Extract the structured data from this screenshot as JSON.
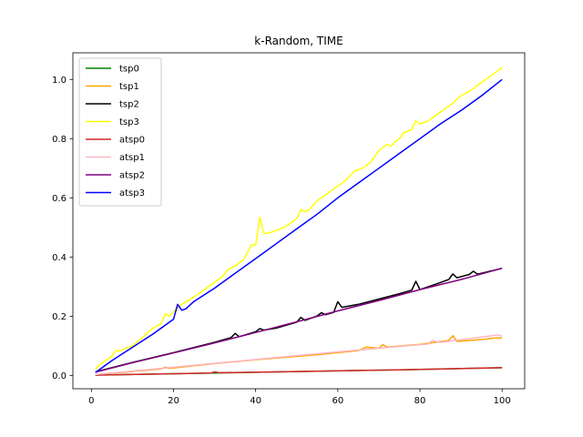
{
  "chart_data": {
    "type": "line",
    "title": "k-Random, TIME",
    "xlabel": "",
    "ylabel": "",
    "xlim": [
      -4.5,
      105.5
    ],
    "ylim": [
      -0.045,
      1.09
    ],
    "xticks": [
      0,
      20,
      40,
      60,
      80,
      100
    ],
    "yticks": [
      0.0,
      0.2,
      0.4,
      0.6,
      0.8,
      1.0
    ],
    "xtick_labels": [
      "0",
      "20",
      "40",
      "60",
      "80",
      "100"
    ],
    "ytick_labels": [
      "0.0",
      "0.2",
      "0.4",
      "0.6",
      "0.8",
      "1.0"
    ],
    "grid": false,
    "legend_position": "top-left",
    "series": [
      {
        "name": "tsp0",
        "color": "#008000",
        "x": [
          1,
          25,
          50,
          75,
          100
        ],
        "y": [
          0.001,
          0.007,
          0.013,
          0.019,
          0.026
        ]
      },
      {
        "name": "tsp1",
        "color": "#ffa500",
        "x": [
          1,
          10,
          11,
          12,
          17,
          18,
          19,
          30,
          40,
          55,
          65,
          66,
          67,
          70,
          71,
          72,
          80,
          87,
          88,
          89,
          95,
          98,
          100
        ],
        "y": [
          0.003,
          0.013,
          0.017,
          0.016,
          0.022,
          0.028,
          0.024,
          0.04,
          0.053,
          0.07,
          0.084,
          0.09,
          0.096,
          0.092,
          0.104,
          0.096,
          0.105,
          0.118,
          0.134,
          0.115,
          0.121,
          0.126,
          0.127
        ]
      },
      {
        "name": "tsp2",
        "color": "#000000",
        "x": [
          1,
          10,
          20,
          30,
          34,
          35,
          36,
          40,
          41,
          42,
          45,
          50,
          51,
          52,
          55,
          56,
          57,
          59,
          60,
          61,
          65,
          70,
          75,
          78,
          79,
          80,
          85,
          87,
          88,
          89,
          92,
          93,
          94,
          100
        ],
        "y": [
          0.012,
          0.044,
          0.077,
          0.112,
          0.128,
          0.142,
          0.131,
          0.148,
          0.158,
          0.153,
          0.16,
          0.18,
          0.196,
          0.186,
          0.201,
          0.212,
          0.205,
          0.213,
          0.249,
          0.23,
          0.24,
          0.258,
          0.276,
          0.288,
          0.318,
          0.29,
          0.314,
          0.324,
          0.343,
          0.33,
          0.341,
          0.352,
          0.342,
          0.362
        ]
      },
      {
        "name": "tsp3",
        "color": "#ffff00",
        "x": [
          1,
          2,
          3,
          5,
          6,
          7,
          8,
          10,
          15,
          17,
          18,
          19,
          20,
          22,
          25,
          30,
          32,
          33,
          35,
          37,
          38,
          39,
          40,
          41,
          42,
          43,
          45,
          47,
          50,
          51,
          52,
          53,
          55,
          58,
          60,
          62,
          64,
          66,
          68,
          70,
          72,
          73,
          74,
          75,
          76,
          78,
          79,
          80,
          82,
          85,
          88,
          90,
          92,
          95,
          98,
          100
        ],
        "y": [
          0.02,
          0.036,
          0.045,
          0.065,
          0.085,
          0.082,
          0.09,
          0.1,
          0.16,
          0.175,
          0.208,
          0.2,
          0.216,
          0.24,
          0.265,
          0.315,
          0.335,
          0.355,
          0.37,
          0.39,
          0.415,
          0.44,
          0.44,
          0.535,
          0.48,
          0.48,
          0.49,
          0.5,
          0.53,
          0.56,
          0.553,
          0.56,
          0.59,
          0.62,
          0.64,
          0.66,
          0.69,
          0.7,
          0.72,
          0.76,
          0.78,
          0.775,
          0.79,
          0.8,
          0.82,
          0.83,
          0.86,
          0.85,
          0.86,
          0.89,
          0.92,
          0.945,
          0.96,
          0.99,
          1.02,
          1.04
        ]
      },
      {
        "name": "atsp0",
        "color": "#d62728",
        "x": [
          1,
          25,
          29,
          30,
          31,
          50,
          75,
          100
        ],
        "y": [
          0.001,
          0.007,
          0.008,
          0.012,
          0.009,
          0.013,
          0.019,
          0.026
        ]
      },
      {
        "name": "atsp1",
        "color": "#ffb6c1",
        "x": [
          1,
          25,
          50,
          75,
          82,
          83,
          84,
          85,
          98,
          99,
          100
        ],
        "y": [
          0.003,
          0.034,
          0.067,
          0.098,
          0.106,
          0.118,
          0.114,
          0.112,
          0.135,
          0.137,
          0.133
        ]
      },
      {
        "name": "atsp2",
        "color": "#800080",
        "x": [
          1,
          10,
          20,
          30,
          40,
          50,
          60,
          70,
          80,
          90,
          100
        ],
        "y": [
          0.011,
          0.043,
          0.076,
          0.11,
          0.145,
          0.181,
          0.218,
          0.253,
          0.29,
          0.324,
          0.362
        ]
      },
      {
        "name": "atsp3",
        "color": "#0000ff",
        "x": [
          1,
          5,
          10,
          15,
          20,
          21,
          22,
          23,
          25,
          30,
          35,
          40,
          45,
          50,
          55,
          60,
          65,
          70,
          75,
          80,
          85,
          90,
          95,
          100
        ],
        "y": [
          0.01,
          0.05,
          0.095,
          0.14,
          0.19,
          0.24,
          0.22,
          0.225,
          0.25,
          0.295,
          0.345,
          0.395,
          0.445,
          0.495,
          0.545,
          0.6,
          0.65,
          0.7,
          0.75,
          0.8,
          0.85,
          0.895,
          0.945,
          1.0
        ]
      }
    ]
  }
}
